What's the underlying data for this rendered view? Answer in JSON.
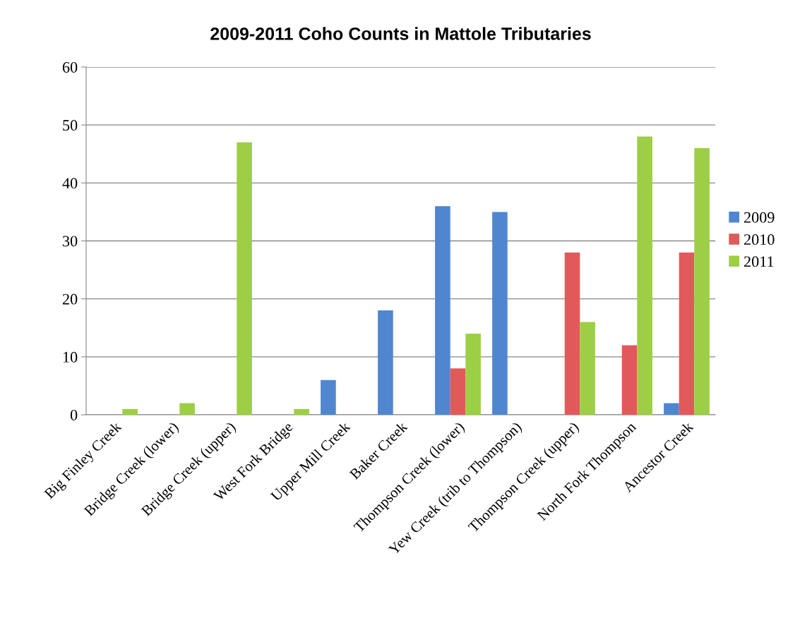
{
  "chart_data": {
    "type": "bar",
    "title": "2009-2011 Coho Counts in Mattole Tributaries",
    "categories": [
      "Big Finley Creek",
      "Bridge Creek (lower)",
      "Bridge Creek (upper)",
      "West Fork Bridge",
      "Upper Mill Creek",
      "Baker Creek",
      "Thompson Creek (lower)",
      "Yew Creek (trib to Thompson)",
      "Thompson Creek (upper)",
      "North Fork Thompson",
      "Ancestor Creek"
    ],
    "series": [
      {
        "name": "2009",
        "color": "#4f86cf",
        "values": [
          null,
          null,
          null,
          null,
          6,
          18,
          36,
          35,
          null,
          null,
          2
        ]
      },
      {
        "name": "2010",
        "color": "#e05a5a",
        "values": [
          null,
          null,
          null,
          null,
          null,
          null,
          8,
          null,
          28,
          12,
          28
        ]
      },
      {
        "name": "2011",
        "color": "#9ccf45",
        "values": [
          1,
          2,
          47,
          1,
          null,
          null,
          14,
          null,
          16,
          48,
          46
        ]
      }
    ],
    "ylim": [
      0,
      60
    ],
    "yticks": [
      0,
      10,
      20,
      30,
      40,
      50,
      60
    ],
    "grid": "y",
    "legend": "right"
  }
}
